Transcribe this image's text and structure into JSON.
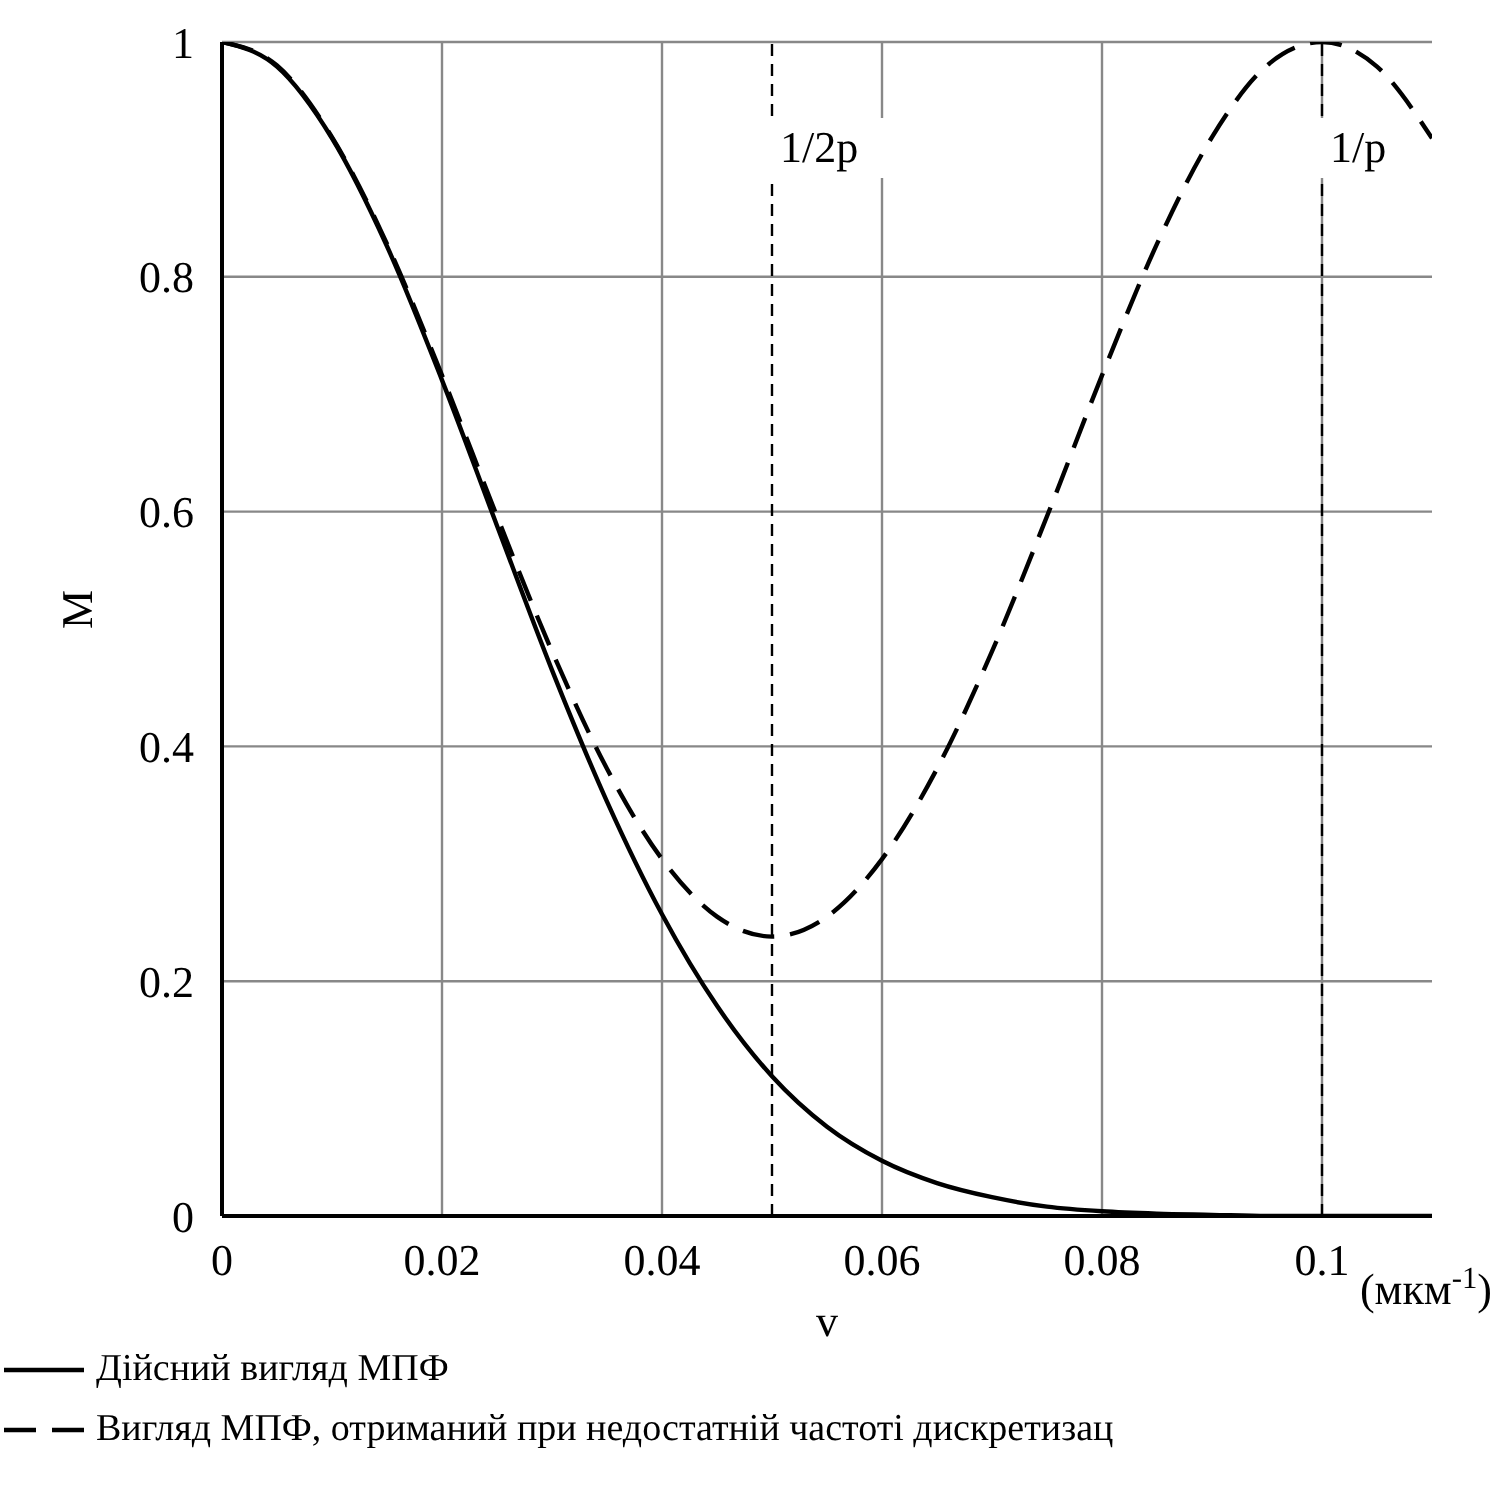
{
  "chart_data": {
    "type": "line",
    "xlabel": "v",
    "ylabel": "M",
    "x": [
      0,
      0.005,
      0.01,
      0.015,
      0.02,
      0.025,
      0.03,
      0.035,
      0.04,
      0.045,
      0.05,
      0.055,
      0.06,
      0.065,
      0.07,
      0.075,
      0.08,
      0.085,
      0.09,
      0.095,
      0.1,
      0.105,
      0.11
    ],
    "series": [
      {
        "name": "Дійсний вигляд МПФ",
        "color": "#000000",
        "line_style": "solid",
        "values": [
          1,
          0.979,
          0.918,
          0.826,
          0.712,
          0.588,
          0.465,
          0.353,
          0.257,
          0.179,
          0.119,
          0.076,
          0.047,
          0.028,
          0.016,
          0.008,
          0.004,
          0.002,
          0.001,
          0,
          0,
          0,
          0
        ]
      },
      {
        "name": "Вигляд МПФ, отриманий при недостатній частоті дискретизац",
        "color": "#000000",
        "line_style": "dashed",
        "values": [
          1,
          0.98,
          0.919,
          0.828,
          0.716,
          0.596,
          0.481,
          0.381,
          0.304,
          0.255,
          0.238,
          0.255,
          0.304,
          0.381,
          0.481,
          0.596,
          0.716,
          0.828,
          0.919,
          0.98,
          1,
          0.979,
          0.918
        ]
      }
    ],
    "xlim": [
      0,
      0.11
    ],
    "xticks": [
      0,
      0.02,
      0.04,
      0.06,
      0.08,
      0.1
    ],
    "ylim": [
      0,
      1
    ],
    "yticks": [
      0,
      0.2,
      0.4,
      0.6,
      0.8,
      1
    ],
    "grid": true,
    "legend": "bottom",
    "marker": "none",
    "ref_lines": [
      {
        "axis": "x",
        "value": 0.05,
        "label": "1/2p",
        "line_style": "dashed",
        "color": "#000000"
      },
      {
        "axis": "x",
        "value": 0.1,
        "label": "1/p",
        "line_style": "dashed",
        "color": "#000000"
      }
    ],
    "annotations": [
      "(мкм$^{-1}$)"
    ]
  }
}
